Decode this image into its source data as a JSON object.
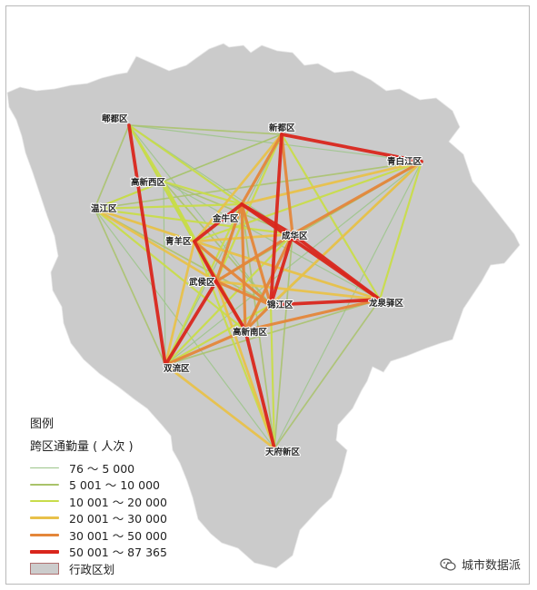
{
  "legend": {
    "title": "图例",
    "subtitle": "跨区通勤量 ( 人次 )",
    "classes": [
      {
        "label": "76 ～ 5 000",
        "color": "#9cc58a",
        "weight": 1
      },
      {
        "label": "5 001 ～ 10 000",
        "color": "#a9c36a",
        "weight": 2
      },
      {
        "label": "10 001 ～ 20 000",
        "color": "#c8dc4a",
        "weight": 3
      },
      {
        "label": "20 001 ～ 30 000",
        "color": "#e8c14a",
        "weight": 4
      },
      {
        "label": "30 001 ～ 50 000",
        "color": "#e4863a",
        "weight": 5
      },
      {
        "label": "50 001 ～ 87 365",
        "color": "#d9261c",
        "weight": 6
      }
    ],
    "admin_label": "行政区划",
    "admin_color": "#cccccc"
  },
  "watermark": "城市数据派",
  "districts": {
    "pidu": "郫都区",
    "xindu": "新都区",
    "qingbaijiang": "青白江区",
    "gaoxinxi": "高新西区",
    "wenjiang": "温江区",
    "jinniu": "金牛区",
    "qingyang": "青羊区",
    "chenghua": "成华区",
    "wuhou": "武侯区",
    "jinjiang": "锦江区",
    "longquanyi": "龙泉驿区",
    "gaoxinnan": "高新南区",
    "shuangliu": "双流区",
    "tianfu": "天府新区"
  },
  "flows": [
    {
      "from": "pidu",
      "to": "shuangliu",
      "class": 6
    },
    {
      "from": "pidu",
      "to": "qingyang",
      "class": 3
    },
    {
      "from": "pidu",
      "to": "jinniu",
      "class": 3
    },
    {
      "from": "pidu",
      "to": "gaoxinxi",
      "class": 3
    },
    {
      "from": "pidu",
      "to": "xindu",
      "class": 2
    },
    {
      "from": "pidu",
      "to": "wenjiang",
      "class": 2
    },
    {
      "from": "pidu",
      "to": "chenghua",
      "class": 1
    },
    {
      "from": "pidu",
      "to": "wuhou",
      "class": 2
    },
    {
      "from": "pidu",
      "to": "jinjiang",
      "class": 1
    },
    {
      "from": "pidu",
      "to": "longquanyi",
      "class": 1
    },
    {
      "from": "pidu",
      "to": "qingbaijiang",
      "class": 1
    },
    {
      "from": "pidu",
      "to": "gaoxinnan",
      "class": 2
    },
    {
      "from": "xindu",
      "to": "qingbaijiang",
      "class": 6
    },
    {
      "from": "xindu",
      "to": "jinjiang",
      "class": 6
    },
    {
      "from": "xindu",
      "to": "jinniu",
      "class": 5
    },
    {
      "from": "xindu",
      "to": "chenghua",
      "class": 5
    },
    {
      "from": "xindu",
      "to": "qingyang",
      "class": 4
    },
    {
      "from": "xindu",
      "to": "longquanyi",
      "class": 3
    },
    {
      "from": "xindu",
      "to": "wuhou",
      "class": 3
    },
    {
      "from": "xindu",
      "to": "wenjiang",
      "class": 2
    },
    {
      "from": "xindu",
      "to": "gaoxinxi",
      "class": 1
    },
    {
      "from": "xindu",
      "to": "shuangliu",
      "class": 1
    },
    {
      "from": "qingbaijiang",
      "to": "chenghua",
      "class": 5
    },
    {
      "from": "qingbaijiang",
      "to": "jinniu",
      "class": 4
    },
    {
      "from": "qingbaijiang",
      "to": "jinjiang",
      "class": 4
    },
    {
      "from": "qingbaijiang",
      "to": "longquanyi",
      "class": 3
    },
    {
      "from": "qingbaijiang",
      "to": "qingyang",
      "class": 3
    },
    {
      "from": "qingbaijiang",
      "to": "wenjiang",
      "class": 2
    },
    {
      "from": "qingbaijiang",
      "to": "wuhou",
      "class": 2
    },
    {
      "from": "qingbaijiang",
      "to": "gaoxinnan",
      "class": 2
    },
    {
      "from": "qingbaijiang",
      "to": "shuangliu",
      "class": 1
    },
    {
      "from": "qingbaijiang",
      "to": "tianfu",
      "class": 1
    },
    {
      "from": "wenjiang",
      "to": "qingyang",
      "class": 4
    },
    {
      "from": "wenjiang",
      "to": "jinniu",
      "class": 3
    },
    {
      "from": "wenjiang",
      "to": "gaoxinxi",
      "class": 3
    },
    {
      "from": "wenjiang",
      "to": "wuhou",
      "class": 4
    },
    {
      "from": "wenjiang",
      "to": "gaoxinnan",
      "class": 3
    },
    {
      "from": "wenjiang",
      "to": "chenghua",
      "class": 3
    },
    {
      "from": "wenjiang",
      "to": "jinjiang",
      "class": 2
    },
    {
      "from": "wenjiang",
      "to": "shuangliu",
      "class": 2
    },
    {
      "from": "wenjiang",
      "to": "longquanyi",
      "class": 1
    },
    {
      "from": "wenjiang",
      "to": "tianfu",
      "class": 1
    },
    {
      "from": "gaoxinxi",
      "to": "qingyang",
      "class": 3
    },
    {
      "from": "gaoxinxi",
      "to": "jinniu",
      "class": 3
    },
    {
      "from": "gaoxinxi",
      "to": "wuhou",
      "class": 3
    },
    {
      "from": "gaoxinxi",
      "to": "gaoxinnan",
      "class": 3
    },
    {
      "from": "gaoxinxi",
      "to": "chenghua",
      "class": 2
    },
    {
      "from": "gaoxinxi",
      "to": "jinjiang",
      "class": 2
    },
    {
      "from": "gaoxinxi",
      "to": "longquanyi",
      "class": 1
    },
    {
      "from": "gaoxinxi",
      "to": "shuangliu",
      "class": 1
    },
    {
      "from": "jinniu",
      "to": "qingyang",
      "class": 6
    },
    {
      "from": "jinniu",
      "to": "chenghua",
      "class": 6
    },
    {
      "from": "jinniu",
      "to": "jinjiang",
      "class": 5
    },
    {
      "from": "jinniu",
      "to": "wuhou",
      "class": 5
    },
    {
      "from": "jinniu",
      "to": "gaoxinnan",
      "class": 5
    },
    {
      "from": "jinniu",
      "to": "longquanyi",
      "class": 6
    },
    {
      "from": "jinniu",
      "to": "shuangliu",
      "class": 3
    },
    {
      "from": "jinniu",
      "to": "tianfu",
      "class": 2
    },
    {
      "from": "qingyang",
      "to": "chenghua",
      "class": 4
    },
    {
      "from": "qingyang",
      "to": "wuhou",
      "class": 6
    },
    {
      "from": "qingyang",
      "to": "jinjiang",
      "class": 5
    },
    {
      "from": "qingyang",
      "to": "gaoxinnan",
      "class": 5
    },
    {
      "from": "qingyang",
      "to": "longquanyi",
      "class": 4
    },
    {
      "from": "qingyang",
      "to": "shuangliu",
      "class": 4
    },
    {
      "from": "qingyang",
      "to": "tianfu",
      "class": 3
    },
    {
      "from": "chenghua",
      "to": "jinjiang",
      "class": 6
    },
    {
      "from": "chenghua",
      "to": "longquanyi",
      "class": 6
    },
    {
      "from": "chenghua",
      "to": "wuhou",
      "class": 5
    },
    {
      "from": "chenghua",
      "to": "gaoxinnan",
      "class": 5
    },
    {
      "from": "chenghua",
      "to": "shuangliu",
      "class": 3
    },
    {
      "from": "chenghua",
      "to": "tianfu",
      "class": 2
    },
    {
      "from": "wuhou",
      "to": "gaoxinnan",
      "class": 6
    },
    {
      "from": "wuhou",
      "to": "jinjiang",
      "class": 5
    },
    {
      "from": "wuhou",
      "to": "shuangliu",
      "class": 6
    },
    {
      "from": "wuhou",
      "to": "longquanyi",
      "class": 4
    },
    {
      "from": "wuhou",
      "to": "tianfu",
      "class": 4
    },
    {
      "from": "jinjiang",
      "to": "longquanyi",
      "class": 6
    },
    {
      "from": "jinjiang",
      "to": "gaoxinnan",
      "class": 5
    },
    {
      "from": "jinjiang",
      "to": "shuangliu",
      "class": 3
    },
    {
      "from": "jinjiang",
      "to": "tianfu",
      "class": 3
    },
    {
      "from": "longquanyi",
      "to": "gaoxinnan",
      "class": 5
    },
    {
      "from": "longquanyi",
      "to": "shuangliu",
      "class": 2
    },
    {
      "from": "longquanyi",
      "to": "tianfu",
      "class": 2
    },
    {
      "from": "gaoxinnan",
      "to": "shuangliu",
      "class": 5
    },
    {
      "from": "gaoxinnan",
      "to": "tianfu",
      "class": 6
    },
    {
      "from": "shuangliu",
      "to": "tianfu",
      "class": 4
    }
  ]
}
